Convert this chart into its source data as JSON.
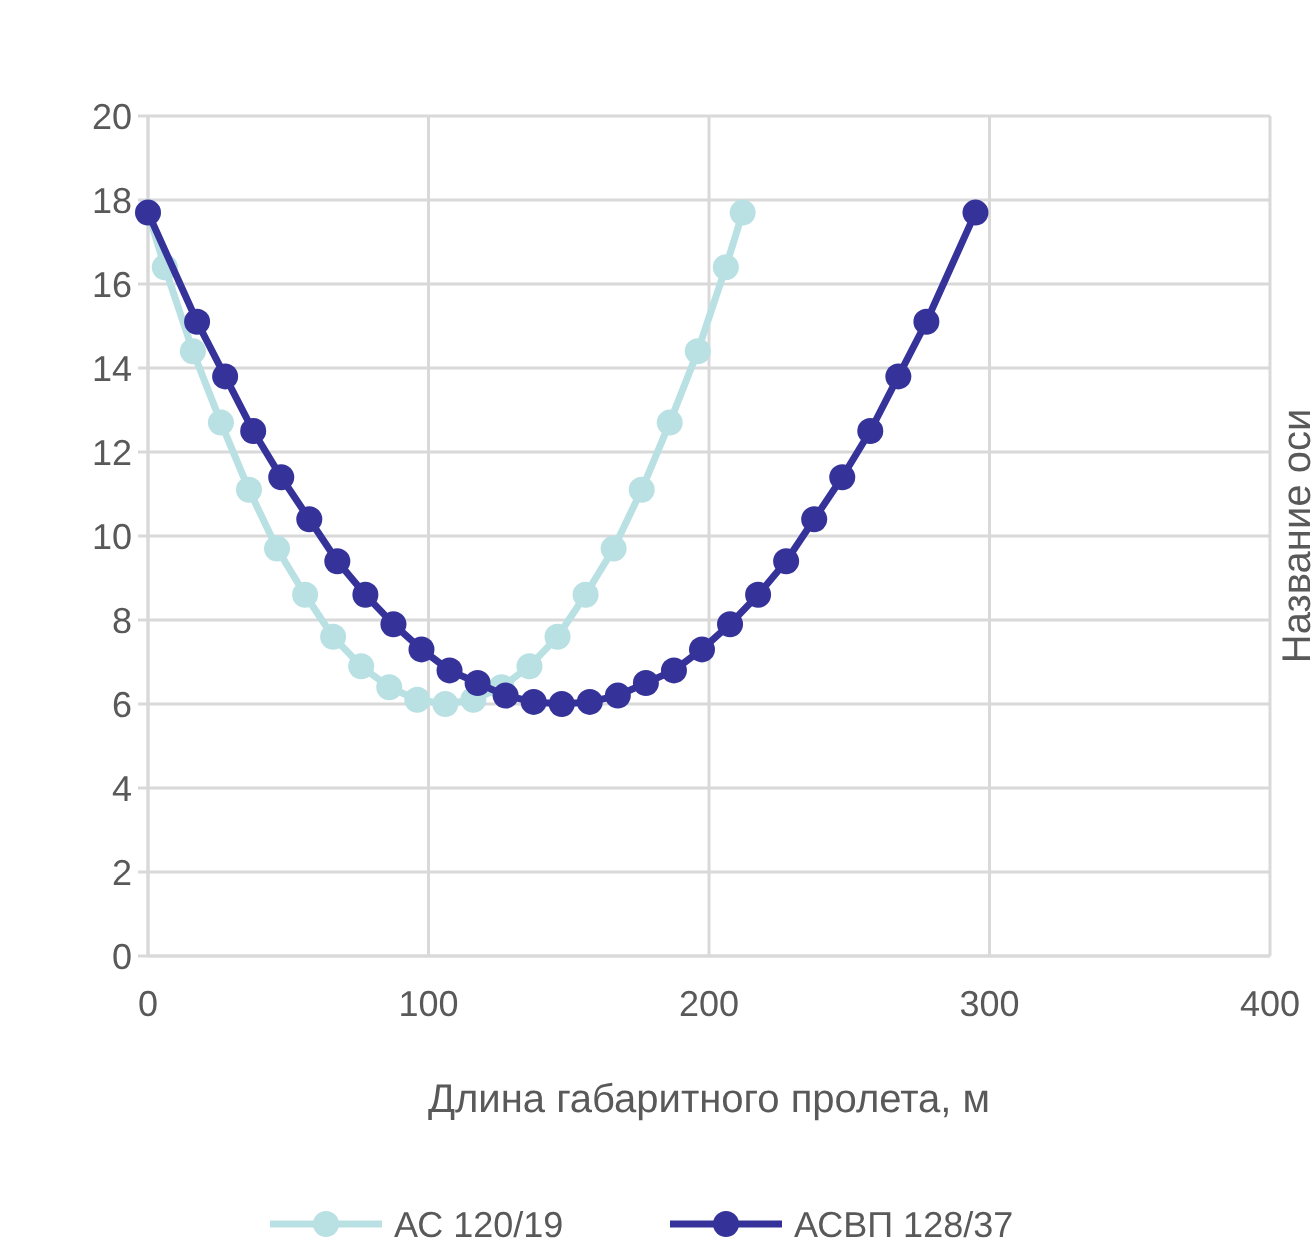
{
  "chart_data": {
    "type": "line",
    "xlabel": "Длина габаритного пролета, м",
    "ylabel": "Название оси",
    "xlim": [
      0,
      400
    ],
    "xticks": [
      0,
      100,
      200,
      300,
      400
    ],
    "ylim": [
      0,
      20
    ],
    "yticks": [
      0,
      2,
      4,
      6,
      8,
      10,
      12,
      14,
      16,
      18,
      20
    ],
    "grid": true,
    "legend": "bottom",
    "marker": "circle",
    "line_style": "solid",
    "series": [
      {
        "name": "АС 120/19",
        "color": "#b9e0e3",
        "x": [
          0,
          6,
          16,
          26,
          36,
          46,
          56,
          66,
          76,
          86,
          96,
          106,
          116,
          126,
          136,
          146,
          156,
          166,
          176,
          186,
          196,
          206,
          212
        ],
        "values": [
          17.7,
          16.4,
          14.4,
          12.7,
          11.1,
          9.7,
          8.6,
          7.6,
          6.9,
          6.4,
          6.1,
          6.0,
          6.1,
          6.4,
          6.9,
          7.6,
          8.6,
          9.7,
          11.1,
          12.7,
          14.4,
          16.4,
          17.7
        ]
      },
      {
        "name": "АСВП 128/37",
        "color": "#35339a",
        "x": [
          0,
          17.5,
          27.5,
          37.5,
          47.5,
          57.5,
          67.5,
          77.5,
          87.5,
          97.5,
          107.5,
          117.5,
          127.5,
          137.5,
          147.5,
          157.5,
          167.5,
          177.5,
          187.5,
          197.5,
          207.5,
          217.5,
          227.5,
          237.5,
          247.5,
          257.5,
          267.5,
          277.5,
          295
        ],
        "values": [
          17.7,
          15.1,
          13.8,
          12.5,
          11.4,
          10.4,
          9.4,
          8.6,
          7.9,
          7.3,
          6.8,
          6.5,
          6.2,
          6.05,
          6.0,
          6.05,
          6.2,
          6.5,
          6.8,
          7.3,
          7.9,
          8.6,
          9.4,
          10.4,
          11.4,
          12.5,
          13.8,
          15.1,
          17.7
        ]
      }
    ]
  }
}
